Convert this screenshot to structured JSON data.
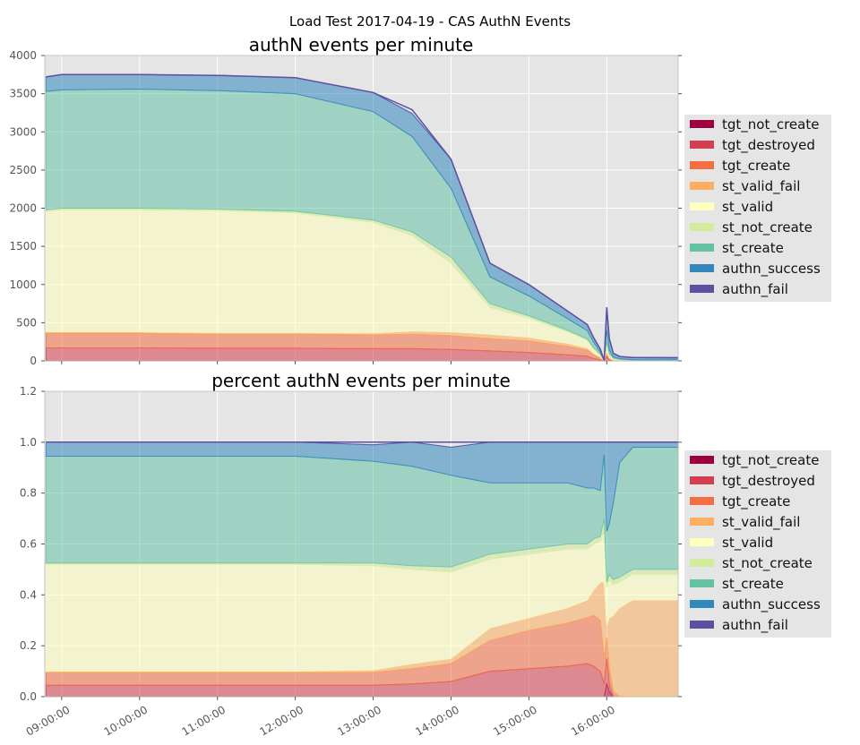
{
  "figure_title": "Load Test 2017-04-19 - CAS AuthN Events",
  "colors": {
    "tgt_not_create": "#9e0142",
    "tgt_destroyed": "#d53e4f",
    "tgt_create": "#f46d43",
    "st_valid_fail": "#fdae61",
    "st_valid": "#ffffbf",
    "st_not_create": "#d1ec9c",
    "st_create": "#66c2a5",
    "authn_success": "#3288bd",
    "authn_fail": "#5e4fa2"
  },
  "chart_data": [
    {
      "type": "area",
      "title": "authN events per minute",
      "stacked": true,
      "x_ticks": [
        "09:00:00",
        "10:00:00",
        "11:00:00",
        "12:00:00",
        "13:00:00",
        "14:00:00",
        "15:00:00",
        "16:00:00"
      ],
      "x_range": [
        "08:47",
        "16:55"
      ],
      "ylim": [
        0,
        4000
      ],
      "y_ticks": [
        "0",
        "500",
        "1000",
        "1500",
        "2000",
        "2500",
        "3000",
        "3500",
        "4000"
      ],
      "grid": true,
      "legend_position": "right",
      "legend": [
        "tgt_not_create",
        "tgt_destroyed",
        "tgt_create",
        "st_valid_fail",
        "st_valid",
        "st_not_create",
        "st_create",
        "authn_success",
        "authn_fail"
      ],
      "x": [
        "08:48",
        "09:00",
        "10:00",
        "11:00",
        "12:00",
        "13:00",
        "13:30",
        "14:00",
        "14:30",
        "15:00",
        "15:30",
        "15:45",
        "15:50",
        "15:55",
        "15:58",
        "16:00",
        "16:02",
        "16:05",
        "16:10",
        "16:20",
        "16:55"
      ],
      "series": [
        {
          "name": "tgt_not_create",
          "values": [
            0,
            0,
            0,
            0,
            0,
            0,
            0,
            0,
            0,
            0,
            0,
            0,
            0,
            0,
            0,
            0,
            0,
            0,
            0,
            0,
            0
          ]
        },
        {
          "name": "tgt_destroyed",
          "values": [
            170,
            170,
            170,
            165,
            165,
            160,
            160,
            150,
            130,
            110,
            80,
            60,
            30,
            10,
            0,
            60,
            10,
            0,
            0,
            0,
            0
          ]
        },
        {
          "name": "tgt_create",
          "values": [
            190,
            190,
            190,
            185,
            185,
            180,
            190,
            180,
            160,
            150,
            110,
            80,
            50,
            30,
            5,
            60,
            20,
            5,
            0,
            0,
            0
          ]
        },
        {
          "name": "st_valid_fail",
          "values": [
            20,
            20,
            20,
            20,
            20,
            25,
            40,
            50,
            60,
            50,
            40,
            30,
            20,
            10,
            0,
            10,
            10,
            10,
            8,
            5,
            5
          ]
        },
        {
          "name": "st_valid",
          "values": [
            1580,
            1600,
            1600,
            1600,
            1570,
            1450,
            1250,
            900,
            350,
            250,
            150,
            100,
            60,
            30,
            0,
            100,
            40,
            15,
            10,
            5,
            5
          ]
        },
        {
          "name": "st_not_create",
          "values": [
            20,
            20,
            20,
            20,
            20,
            30,
            50,
            80,
            50,
            30,
            20,
            15,
            10,
            5,
            0,
            20,
            10,
            5,
            0,
            0,
            0
          ]
        },
        {
          "name": "st_create",
          "values": [
            1550,
            1550,
            1560,
            1550,
            1540,
            1420,
            1250,
            900,
            350,
            260,
            150,
            110,
            70,
            30,
            0,
            150,
            50,
            15,
            10,
            5,
            5
          ]
        },
        {
          "name": "authn_success",
          "values": [
            190,
            200,
            190,
            200,
            210,
            250,
            300,
            380,
            180,
            150,
            100,
            80,
            60,
            40,
            0,
            300,
            150,
            50,
            30,
            30,
            30
          ]
        },
        {
          "name": "authn_fail",
          "values": [
            0,
            0,
            0,
            0,
            0,
            0,
            0,
            0,
            0,
            0,
            0,
            0,
            0,
            0,
            0,
            0,
            0,
            0,
            0,
            0,
            0
          ]
        }
      ],
      "total_line": {
        "name": "authN total",
        "values": [
          3720,
          3750,
          3750,
          3740,
          3710,
          3515,
          3290,
          2640,
          1280,
          1000,
          650,
          475,
          300,
          155,
          5,
          700,
          290,
          100,
          58,
          45,
          40
        ]
      }
    },
    {
      "type": "area",
      "title": "percent authN events per minute",
      "stacked": true,
      "x_ticks": [
        "09:00:00",
        "10:00:00",
        "11:00:00",
        "12:00:00",
        "13:00:00",
        "14:00:00",
        "15:00:00",
        "16:00:00"
      ],
      "x_range": [
        "08:47",
        "16:55"
      ],
      "ylim": [
        0,
        1.2
      ],
      "y_ticks": [
        "0.0",
        "0.2",
        "0.4",
        "0.6",
        "0.8",
        "1.0",
        "1.2"
      ],
      "grid": true,
      "legend_position": "right",
      "legend": [
        "tgt_not_create",
        "tgt_destroyed",
        "tgt_create",
        "st_valid_fail",
        "st_valid",
        "st_not_create",
        "st_create",
        "authn_success",
        "authn_fail"
      ],
      "x": [
        "08:48",
        "09:00",
        "10:00",
        "11:00",
        "12:00",
        "13:00",
        "13:30",
        "14:00",
        "14:30",
        "15:00",
        "15:30",
        "15:45",
        "15:50",
        "15:55",
        "15:58",
        "16:00",
        "16:02",
        "16:05",
        "16:10",
        "16:20",
        "16:55"
      ],
      "series": [
        {
          "name": "tgt_not_create",
          "values": [
            0,
            0,
            0,
            0,
            0,
            0,
            0,
            0,
            0,
            0,
            0,
            0,
            0,
            0,
            0,
            0.05,
            0.02,
            0,
            0,
            0,
            0
          ]
        },
        {
          "name": "tgt_destroyed",
          "values": [
            0.045,
            0.045,
            0.045,
            0.045,
            0.045,
            0.045,
            0.05,
            0.06,
            0.1,
            0.11,
            0.12,
            0.13,
            0.12,
            0.1,
            0.05,
            0.1,
            0.03,
            0,
            0,
            0,
            0
          ]
        },
        {
          "name": "tgt_create",
          "values": [
            0.05,
            0.05,
            0.05,
            0.05,
            0.05,
            0.05,
            0.06,
            0.07,
            0.12,
            0.15,
            0.17,
            0.18,
            0.2,
            0.2,
            0.1,
            0.08,
            0.06,
            0.02,
            0,
            0,
            0
          ]
        },
        {
          "name": "st_valid_fail",
          "values": [
            0.005,
            0.005,
            0.005,
            0.005,
            0.005,
            0.01,
            0.02,
            0.02,
            0.05,
            0.05,
            0.06,
            0.07,
            0.1,
            0.15,
            0.3,
            0.05,
            0.2,
            0.3,
            0.35,
            0.38,
            0.38
          ]
        },
        {
          "name": "st_valid",
          "values": [
            0.42,
            0.42,
            0.42,
            0.42,
            0.42,
            0.41,
            0.37,
            0.34,
            0.27,
            0.25,
            0.23,
            0.2,
            0.18,
            0.16,
            0.2,
            0.15,
            0.15,
            0.12,
            0.1,
            0.1,
            0.1
          ]
        },
        {
          "name": "st_not_create",
          "values": [
            0.005,
            0.005,
            0.005,
            0.005,
            0.005,
            0.01,
            0.015,
            0.02,
            0.02,
            0.02,
            0.02,
            0.02,
            0.02,
            0.02,
            0.05,
            0.02,
            0.02,
            0.02,
            0.02,
            0.02,
            0.02
          ]
        },
        {
          "name": "st_create",
          "values": [
            0.42,
            0.42,
            0.42,
            0.42,
            0.42,
            0.4,
            0.39,
            0.36,
            0.28,
            0.26,
            0.24,
            0.22,
            0.2,
            0.18,
            0.25,
            0.2,
            0.2,
            0.3,
            0.45,
            0.48,
            0.48
          ]
        },
        {
          "name": "authn_success",
          "values": [
            0.055,
            0.055,
            0.055,
            0.055,
            0.055,
            0.065,
            0.095,
            0.11,
            0.16,
            0.16,
            0.16,
            0.18,
            0.18,
            0.19,
            0.05,
            0.35,
            0.32,
            0.24,
            0.08,
            0.02,
            0.02
          ]
        },
        {
          "name": "authn_fail",
          "values": [
            0,
            0,
            0,
            0,
            0,
            0,
            0,
            0,
            0,
            0,
            0,
            0,
            0,
            0,
            0,
            0,
            0,
            0,
            0,
            0,
            0
          ]
        }
      ],
      "total_line": {
        "name": "authN total",
        "values": [
          1,
          1,
          1,
          1,
          1,
          1,
          1,
          1,
          1,
          1,
          1,
          1,
          1,
          1,
          1,
          1,
          1,
          1,
          1,
          1,
          1
        ]
      }
    }
  ]
}
